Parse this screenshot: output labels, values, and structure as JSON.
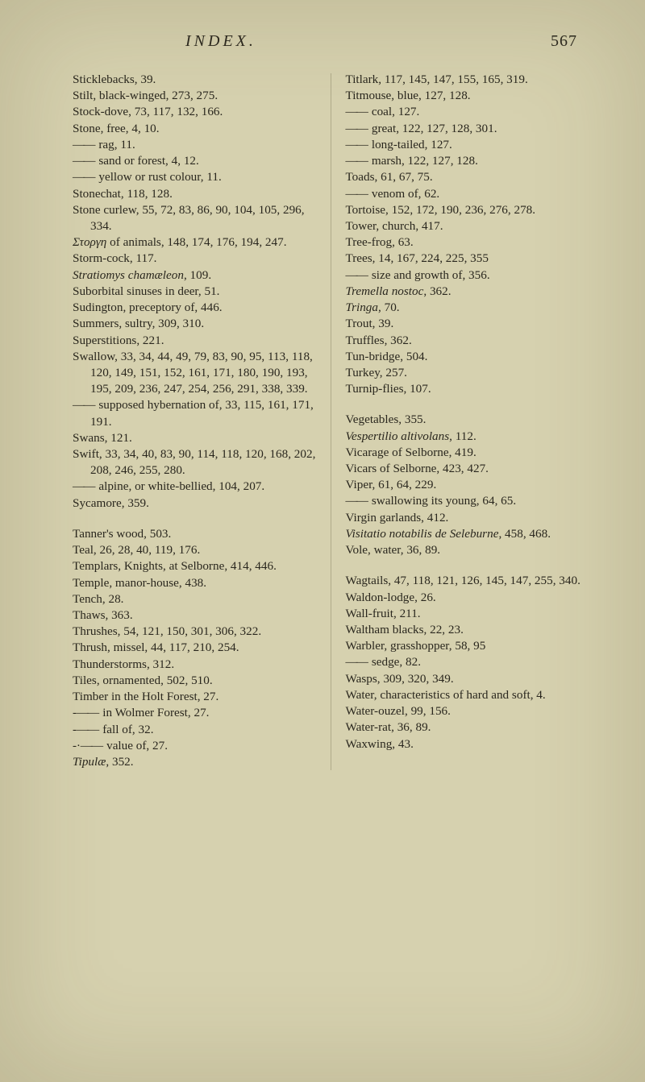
{
  "header": {
    "title": "INDEX.",
    "pageno": "567"
  },
  "left": [
    {
      "t": "Sticklebacks, 39."
    },
    {
      "t": "Stilt, black-winged, 273, 275."
    },
    {
      "t": "Stock-dove, 73, 117, 132, 166."
    },
    {
      "t": "Stone, free, 4, 10."
    },
    {
      "cls": "dash",
      "t": "rag, 11."
    },
    {
      "cls": "dash",
      "t": "sand or forest, 4, 12."
    },
    {
      "cls": "dash",
      "t": "yellow or rust colour, 11."
    },
    {
      "t": "Stonechat, 118, 128."
    },
    {
      "t": "Stone curlew, 55, 72, 83, 86, 90, 104, 105, 296, 334."
    },
    {
      "html": "<i>Στοργη</i> of animals, 148, 174, 176, 194, 247."
    },
    {
      "t": "Storm-cock, 117."
    },
    {
      "html": "<i>Stratiomys chamæleon</i>, 109."
    },
    {
      "t": "Suborbital sinuses in deer, 51."
    },
    {
      "t": "Sudington, preceptory of, 446."
    },
    {
      "t": "Summers, sultry, 309, 310."
    },
    {
      "t": "Superstitions, 221."
    },
    {
      "t": "Swallow, 33, 34, 44, 49, 79, 83, 90, 95, 113, 118, 120, 149, 151, 152, 161, 171, 180, 190, 193, 195, 209, 236, 247, 254, 256, 291, 338, 339."
    },
    {
      "cls": "dash",
      "t": "supposed hybernation of, 33, 115, 161, 171, 191."
    },
    {
      "t": "Swans, 121."
    },
    {
      "t": "Swift, 33, 34, 40, 83, 90, 114, 118, 120, 168, 202, 208, 246, 255, 280."
    },
    {
      "cls": "dash",
      "t": "alpine, or white-bellied, 104, 207."
    },
    {
      "t": "Sycamore, 359."
    },
    {
      "cls": "biggap"
    },
    {
      "t": "Tanner's wood, 503."
    },
    {
      "t": "Teal, 26, 28, 40, 119, 176."
    },
    {
      "t": "Templars, Knights, at Selborne, 414, 446."
    },
    {
      "t": "Temple, manor-house, 438."
    },
    {
      "t": "Tench, 28."
    },
    {
      "t": "Thaws, 363."
    },
    {
      "t": "Thrushes, 54, 121, 150, 301, 306, 322."
    },
    {
      "t": "Thrush, missel, 44, 117, 210, 254."
    },
    {
      "t": "Thunderstorms, 312."
    },
    {
      "t": "Tiles, ornamented, 502, 510."
    },
    {
      "t": "Timber in the Holt Forest, 27."
    },
    {
      "cls": "ddash",
      "t": "in Wolmer Forest, 27."
    },
    {
      "cls": "ddash",
      "t": "fall of, 32."
    },
    {
      "cls": "dotdash",
      "t": "value of, 27."
    },
    {
      "html": "<i>Tipulæ</i>, 352."
    }
  ],
  "right": [
    {
      "t": "Titlark, 117, 145, 147, 155, 165, 319."
    },
    {
      "t": "Titmouse, blue, 127, 128."
    },
    {
      "cls": "dash",
      "t": "coal, 127."
    },
    {
      "cls": "dash",
      "t": "great, 122, 127, 128, 301."
    },
    {
      "cls": "dash",
      "t": "long-tailed, 127."
    },
    {
      "cls": "dash",
      "t": "marsh, 122, 127, 128."
    },
    {
      "t": "Toads, 61, 67, 75."
    },
    {
      "cls": "dash",
      "t": "venom of, 62."
    },
    {
      "t": "Tortoise, 152, 172, 190, 236, 276, 278."
    },
    {
      "t": "Tower, church, 417."
    },
    {
      "t": "Tree-frog, 63."
    },
    {
      "t": "Trees, 14, 167, 224, 225, 355"
    },
    {
      "cls": "dash",
      "t": "size and growth of, 356."
    },
    {
      "html": "<i>Tremella nostoc</i>, 362."
    },
    {
      "html": "<i>Tringa</i>, 70."
    },
    {
      "t": "Trout, 39."
    },
    {
      "t": "Truffles, 362."
    },
    {
      "t": "Tun-bridge, 504."
    },
    {
      "t": "Turkey, 257."
    },
    {
      "t": "Turnip-flies, 107."
    },
    {
      "cls": "biggap"
    },
    {
      "t": "Vegetables, 355."
    },
    {
      "html": "<i>Vespertilio altivolans</i>, 112."
    },
    {
      "t": "Vicarage of Selborne, 419."
    },
    {
      "t": "Vicars of Selborne, 423, 427."
    },
    {
      "t": "Viper, 61, 64, 229."
    },
    {
      "cls": "dash",
      "t": "swallowing its young, 64, 65."
    },
    {
      "t": "Virgin garlands, 412."
    },
    {
      "html": "<i>Visitatio notabilis de Seleburne</i>, 458, 468."
    },
    {
      "t": "Vole, water, 36, 89."
    },
    {
      "cls": "biggap"
    },
    {
      "t": "Wagtails, 47, 118, 121, 126, 145, 147, 255, 340."
    },
    {
      "t": "Waldon-lodge, 26."
    },
    {
      "t": "Wall-fruit, 211."
    },
    {
      "t": "Waltham blacks, 22, 23."
    },
    {
      "t": "Warbler, grasshopper, 58, 95"
    },
    {
      "cls": "dash",
      "t": "sedge, 82."
    },
    {
      "t": "Wasps, 309, 320, 349."
    },
    {
      "t": "Water, characteristics of hard and soft, 4."
    },
    {
      "t": "Water-ouzel, 99, 156."
    },
    {
      "t": "Water-rat, 36, 89."
    },
    {
      "t": "Waxwing, 43."
    }
  ]
}
